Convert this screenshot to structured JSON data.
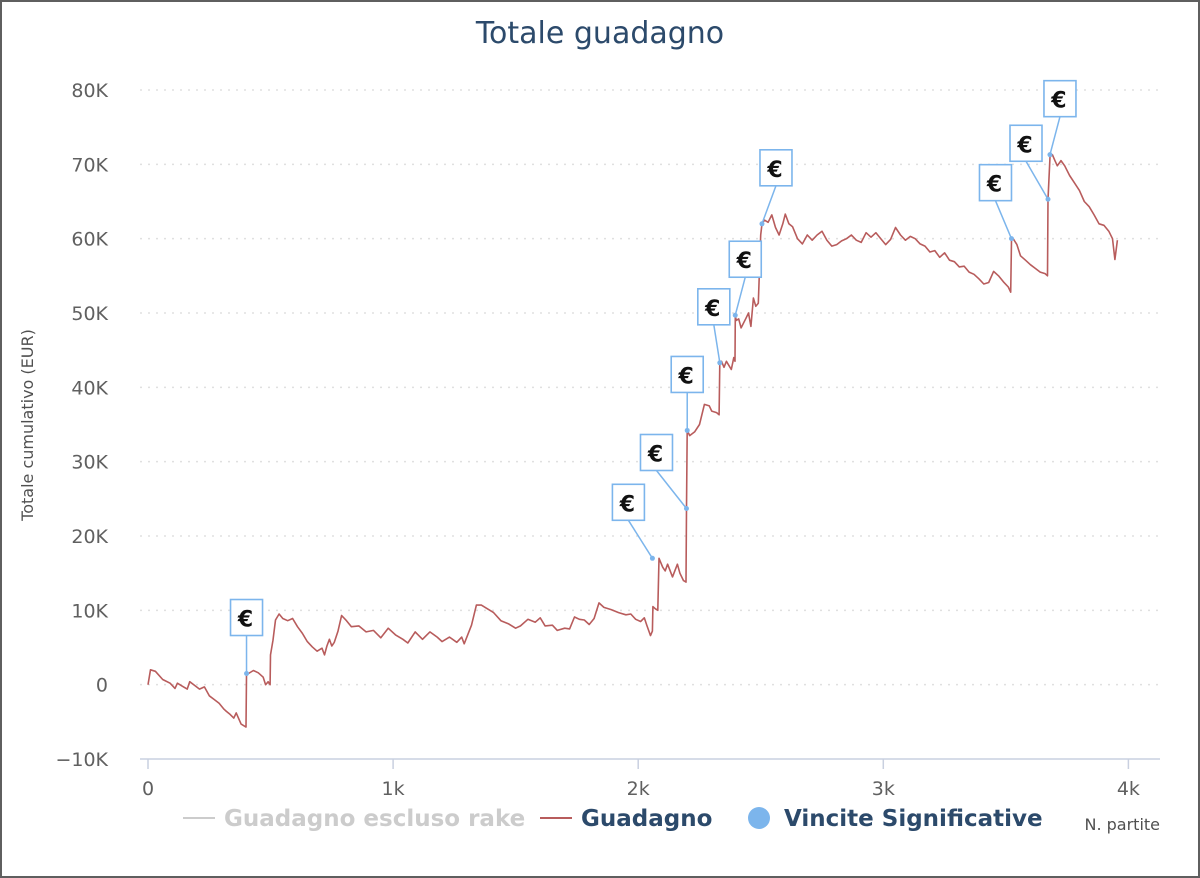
{
  "chart_data": {
    "type": "line",
    "title": "Totale guadagno",
    "ylabel": "Totale cumulativo (EUR)",
    "xlabel": "N. partite",
    "xlim": [
      0,
      4080
    ],
    "ylim": [
      -10000,
      80000
    ],
    "x_ticks": [
      {
        "value": 0,
        "label": "0"
      },
      {
        "value": 1000,
        "label": "1k"
      },
      {
        "value": 2000,
        "label": "2k"
      },
      {
        "value": 3000,
        "label": "3k"
      },
      {
        "value": 4000,
        "label": "4k"
      }
    ],
    "y_ticks": [
      {
        "value": -10000,
        "label": "−10K"
      },
      {
        "value": 0,
        "label": "0"
      },
      {
        "value": 10000,
        "label": "10K"
      },
      {
        "value": 20000,
        "label": "20K"
      },
      {
        "value": 30000,
        "label": "30K"
      },
      {
        "value": 40000,
        "label": "40K"
      },
      {
        "value": 50000,
        "label": "50K"
      },
      {
        "value": 60000,
        "label": "60K"
      },
      {
        "value": 70000,
        "label": "70K"
      },
      {
        "value": 80000,
        "label": "80K"
      }
    ],
    "grid": true,
    "legend_position": "bottom",
    "legend": [
      {
        "name": "Guadagno escluso rake",
        "color": "#cccccc",
        "text_color": "#cccccc",
        "symbol": "line"
      },
      {
        "name": "Guadagno",
        "color": "#b85c5c",
        "text_color": "#2c4a6b",
        "symbol": "line"
      },
      {
        "name": "Vincite Significative",
        "color": "#7cb5ec",
        "text_color": "#2c4a6b",
        "symbol": "dot"
      }
    ],
    "series": [
      {
        "name": "Guadagno",
        "color": "#b85c5c",
        "points": [
          [
            0,
            0
          ],
          [
            10,
            2000
          ],
          [
            30,
            1800
          ],
          [
            60,
            700
          ],
          [
            90,
            200
          ],
          [
            110,
            -500
          ],
          [
            120,
            200
          ],
          [
            140,
            -200
          ],
          [
            160,
            -600
          ],
          [
            170,
            400
          ],
          [
            190,
            -100
          ],
          [
            210,
            -600
          ],
          [
            230,
            -300
          ],
          [
            250,
            -1500
          ],
          [
            270,
            -2000
          ],
          [
            290,
            -2500
          ],
          [
            310,
            -3300
          ],
          [
            320,
            -3600
          ],
          [
            335,
            -4000
          ],
          [
            350,
            -4500
          ],
          [
            360,
            -3800
          ],
          [
            380,
            -5300
          ],
          [
            395,
            -5600
          ],
          [
            400,
            -5700
          ],
          [
            402,
            1200
          ],
          [
            410,
            1500
          ],
          [
            430,
            1900
          ],
          [
            450,
            1600
          ],
          [
            470,
            1000
          ],
          [
            480,
            0
          ],
          [
            490,
            400
          ],
          [
            498,
            0
          ],
          [
            500,
            4000
          ],
          [
            510,
            6000
          ],
          [
            520,
            8700
          ],
          [
            535,
            9500
          ],
          [
            550,
            8900
          ],
          [
            570,
            8600
          ],
          [
            590,
            8900
          ],
          [
            610,
            7800
          ],
          [
            630,
            6900
          ],
          [
            650,
            5800
          ],
          [
            670,
            5100
          ],
          [
            690,
            4500
          ],
          [
            710,
            4900
          ],
          [
            720,
            4000
          ],
          [
            730,
            5200
          ],
          [
            740,
            6100
          ],
          [
            750,
            5200
          ],
          [
            760,
            5700
          ],
          [
            775,
            7200
          ],
          [
            790,
            9300
          ],
          [
            810,
            8600
          ],
          [
            830,
            7800
          ],
          [
            860,
            7900
          ],
          [
            890,
            7100
          ],
          [
            920,
            7300
          ],
          [
            950,
            6300
          ],
          [
            980,
            7600
          ],
          [
            1010,
            6700
          ],
          [
            1040,
            6100
          ],
          [
            1060,
            5600
          ],
          [
            1090,
            7100
          ],
          [
            1120,
            6100
          ],
          [
            1150,
            7100
          ],
          [
            1180,
            6400
          ],
          [
            1200,
            5800
          ],
          [
            1230,
            6400
          ],
          [
            1260,
            5700
          ],
          [
            1280,
            6400
          ],
          [
            1290,
            5500
          ],
          [
            1320,
            8000
          ],
          [
            1340,
            10700
          ],
          [
            1360,
            10700
          ],
          [
            1380,
            10300
          ],
          [
            1410,
            9700
          ],
          [
            1440,
            8600
          ],
          [
            1470,
            8200
          ],
          [
            1500,
            7600
          ],
          [
            1520,
            7900
          ],
          [
            1550,
            8800
          ],
          [
            1580,
            8400
          ],
          [
            1600,
            9000
          ],
          [
            1620,
            7900
          ],
          [
            1650,
            8000
          ],
          [
            1670,
            7300
          ],
          [
            1700,
            7600
          ],
          [
            1720,
            7500
          ],
          [
            1740,
            9100
          ],
          [
            1760,
            8800
          ],
          [
            1780,
            8700
          ],
          [
            1800,
            8100
          ],
          [
            1820,
            8900
          ],
          [
            1840,
            11000
          ],
          [
            1860,
            10400
          ],
          [
            1890,
            10100
          ],
          [
            1920,
            9700
          ],
          [
            1950,
            9400
          ],
          [
            1970,
            9500
          ],
          [
            1990,
            8800
          ],
          [
            2010,
            8500
          ],
          [
            2025,
            9000
          ],
          [
            2035,
            8000
          ],
          [
            2050,
            6600
          ],
          [
            2058,
            7200
          ],
          [
            2060,
            10500
          ],
          [
            2070,
            10200
          ],
          [
            2080,
            10000
          ],
          [
            2085,
            17000
          ],
          [
            2100,
            15800
          ],
          [
            2110,
            15300
          ],
          [
            2120,
            16200
          ],
          [
            2140,
            14500
          ],
          [
            2160,
            16200
          ],
          [
            2170,
            15000
          ],
          [
            2185,
            14000
          ],
          [
            2195,
            13800
          ],
          [
            2197,
            23700
          ],
          [
            2200,
            34200
          ],
          [
            2210,
            33500
          ],
          [
            2230,
            34000
          ],
          [
            2250,
            35000
          ],
          [
            2270,
            37700
          ],
          [
            2290,
            37500
          ],
          [
            2300,
            36800
          ],
          [
            2320,
            36600
          ],
          [
            2330,
            36300
          ],
          [
            2333,
            43300
          ],
          [
            2340,
            43500
          ],
          [
            2350,
            42700
          ],
          [
            2360,
            43500
          ],
          [
            2380,
            42400
          ],
          [
            2390,
            44000
          ],
          [
            2395,
            43500
          ],
          [
            2396,
            49700
          ],
          [
            2400,
            49000
          ],
          [
            2410,
            49200
          ],
          [
            2420,
            48000
          ],
          [
            2440,
            49300
          ],
          [
            2450,
            50000
          ],
          [
            2460,
            48200
          ],
          [
            2470,
            52000
          ],
          [
            2480,
            50900
          ],
          [
            2490,
            51300
          ],
          [
            2500,
            60500
          ],
          [
            2505,
            62000
          ],
          [
            2515,
            62500
          ],
          [
            2530,
            62200
          ],
          [
            2545,
            63200
          ],
          [
            2560,
            61500
          ],
          [
            2575,
            60500
          ],
          [
            2590,
            62000
          ],
          [
            2600,
            63300
          ],
          [
            2615,
            62000
          ],
          [
            2630,
            61600
          ],
          [
            2650,
            60000
          ],
          [
            2670,
            59300
          ],
          [
            2690,
            60500
          ],
          [
            2710,
            59800
          ],
          [
            2730,
            60500
          ],
          [
            2750,
            61000
          ],
          [
            2770,
            59800
          ],
          [
            2790,
            59000
          ],
          [
            2810,
            59200
          ],
          [
            2830,
            59700
          ],
          [
            2850,
            60000
          ],
          [
            2870,
            60500
          ],
          [
            2890,
            59800
          ],
          [
            2910,
            59500
          ],
          [
            2930,
            60800
          ],
          [
            2950,
            60200
          ],
          [
            2970,
            60800
          ],
          [
            2990,
            60000
          ],
          [
            3010,
            59200
          ],
          [
            3030,
            59900
          ],
          [
            3050,
            61500
          ],
          [
            3070,
            60500
          ],
          [
            3090,
            59800
          ],
          [
            3110,
            60300
          ],
          [
            3130,
            60000
          ],
          [
            3150,
            59300
          ],
          [
            3170,
            59000
          ],
          [
            3190,
            58200
          ],
          [
            3210,
            58400
          ],
          [
            3230,
            57500
          ],
          [
            3250,
            58100
          ],
          [
            3270,
            57100
          ],
          [
            3290,
            56900
          ],
          [
            3310,
            56200
          ],
          [
            3330,
            56300
          ],
          [
            3350,
            55500
          ],
          [
            3370,
            55200
          ],
          [
            3390,
            54600
          ],
          [
            3410,
            53900
          ],
          [
            3430,
            54100
          ],
          [
            3450,
            55600
          ],
          [
            3470,
            55000
          ],
          [
            3490,
            54200
          ],
          [
            3510,
            53500
          ],
          [
            3520,
            52800
          ],
          [
            3523,
            59800
          ],
          [
            3530,
            60000
          ],
          [
            3545,
            59200
          ],
          [
            3560,
            57700
          ],
          [
            3580,
            57100
          ],
          [
            3600,
            56500
          ],
          [
            3620,
            56000
          ],
          [
            3640,
            55500
          ],
          [
            3660,
            55300
          ],
          [
            3670,
            55000
          ],
          [
            3672,
            65300
          ],
          [
            3680,
            71000
          ],
          [
            3690,
            71300
          ],
          [
            3700,
            70500
          ],
          [
            3710,
            69800
          ],
          [
            3725,
            70500
          ],
          [
            3740,
            69800
          ],
          [
            3760,
            68500
          ],
          [
            3780,
            67500
          ],
          [
            3800,
            66500
          ],
          [
            3820,
            65000
          ],
          [
            3840,
            64300
          ],
          [
            3860,
            63200
          ],
          [
            3880,
            62000
          ],
          [
            3900,
            61800
          ],
          [
            3920,
            61000
          ],
          [
            3935,
            60000
          ],
          [
            3945,
            57200
          ],
          [
            3955,
            59800
          ]
        ]
      }
    ],
    "significant_wins": [
      {
        "x": 402,
        "y": 1500,
        "label": "€",
        "dx": 0,
        "dy": -54
      },
      {
        "x": 2058,
        "y": 17000,
        "label": "€",
        "dx": -24,
        "dy": -54
      },
      {
        "x": 2197,
        "y": 23700,
        "label": "€",
        "dx": -30,
        "dy": -54
      },
      {
        "x": 2200,
        "y": 34200,
        "label": "€",
        "dx": 0,
        "dy": -54
      },
      {
        "x": 2333,
        "y": 43300,
        "label": "€",
        "dx": -6,
        "dy": -54
      },
      {
        "x": 2396,
        "y": 49700,
        "label": "€",
        "dx": 10,
        "dy": -54
      },
      {
        "x": 2505,
        "y": 62000,
        "label": "€",
        "dx": 14,
        "dy": -54
      },
      {
        "x": 3523,
        "y": 60000,
        "label": "€",
        "dx": -16,
        "dy": -54
      },
      {
        "x": 3672,
        "y": 65300,
        "label": "€",
        "dx": -22,
        "dy": -54
      },
      {
        "x": 3680,
        "y": 71300,
        "label": "€",
        "dx": 10,
        "dy": -54
      }
    ]
  }
}
